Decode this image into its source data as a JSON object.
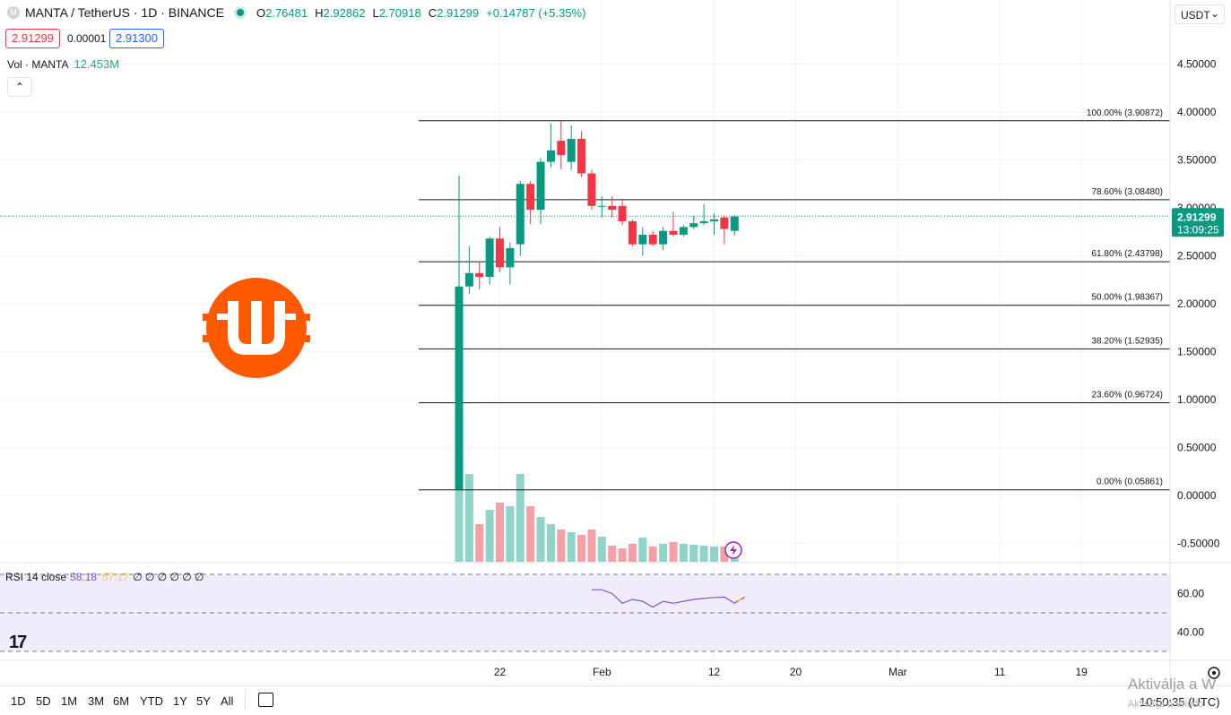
{
  "header": {
    "symbol_title": "MANTA / TetherUS · 1D · BINANCE",
    "symbol_icon": "M",
    "ohlc": {
      "o_label": "O",
      "o": "2.76481",
      "h_label": "H",
      "h": "2.92862",
      "l_label": "L",
      "l": "2.70918",
      "c_label": "C",
      "c": "2.91299",
      "change": "+0.14787 (+5.35%)"
    },
    "bid": "2.91299",
    "spread": "0.00001",
    "ask": "2.91300",
    "currency": "USDT",
    "currency_caret": "⌄"
  },
  "volume_legend": {
    "label": "Vol · MANTA",
    "value": "12.453M"
  },
  "collapse_icon": "chevron-up-icon",
  "rsi_legend": {
    "label": "RSI 14 close",
    "value": "58.18",
    "ma": "57.17",
    "zeros": "∅ ∅ ∅ ∅ ∅ ∅"
  },
  "last_price": {
    "value": "2.91299",
    "countdown": "13:09:25"
  },
  "timeframes": [
    "1D",
    "5D",
    "1M",
    "3M",
    "6M",
    "YTD",
    "1Y",
    "5Y",
    "All"
  ],
  "clock": "10:50:35 (UTC)",
  "watermark": {
    "line1": "Aktiválja a W",
    "line2": "Aktiválja a Windo"
  },
  "colors": {
    "up": "#089981",
    "down": "#f23645",
    "vol_up": "#8fd3c9",
    "vol_down": "#f5a0a6",
    "rsi": "#7e57c2",
    "rsi_ma": "#f7c948",
    "logo": "#ff5a00"
  },
  "chart_data": {
    "type": "candlestick",
    "y_axis_labels": [
      "4.50000",
      "4.00000",
      "3.50000",
      "3.00000",
      "2.50000",
      "2.00000",
      "1.50000",
      "1.00000",
      "0.50000",
      "0.00000",
      "-0.50000"
    ],
    "x_axis_labels": [
      "22",
      "Feb",
      "12",
      "20",
      "Mar",
      "11",
      "19"
    ],
    "ylim": [
      -0.7,
      5.0
    ],
    "fib_levels": [
      {
        "label": "100.00% (3.90872)",
        "value": 3.90872
      },
      {
        "label": "78.60% (3.08480)",
        "value": 3.0848
      },
      {
        "label": "61.80% (2.43798)",
        "value": 2.43798
      },
      {
        "label": "50.00% (1.98367)",
        "value": 1.98367
      },
      {
        "label": "38.20% (1.52935)",
        "value": 1.52935
      },
      {
        "label": "23.60% (0.96724)",
        "value": 0.96724
      },
      {
        "label": "0.00% (0.05861)",
        "value": 0.05861
      }
    ],
    "candles": [
      {
        "date": "2024-01-18",
        "o": 0.06,
        "h": 3.34,
        "l": 0.06,
        "c": 2.18
      },
      {
        "date": "2024-01-19",
        "o": 2.18,
        "h": 2.6,
        "l": 2.1,
        "c": 2.32
      },
      {
        "date": "2024-01-20",
        "o": 2.32,
        "h": 2.44,
        "l": 2.15,
        "c": 2.28
      },
      {
        "date": "2024-01-21",
        "o": 2.28,
        "h": 2.7,
        "l": 2.2,
        "c": 2.68
      },
      {
        "date": "2024-01-22",
        "o": 2.68,
        "h": 2.8,
        "l": 2.33,
        "c": 2.38
      },
      {
        "date": "2024-01-23",
        "o": 2.38,
        "h": 2.64,
        "l": 2.2,
        "c": 2.58
      },
      {
        "date": "2024-01-24",
        "o": 2.62,
        "h": 3.28,
        "l": 2.5,
        "c": 3.25
      },
      {
        "date": "2024-01-25",
        "o": 3.25,
        "h": 3.28,
        "l": 2.83,
        "c": 2.98
      },
      {
        "date": "2024-01-26",
        "o": 2.98,
        "h": 3.52,
        "l": 2.83,
        "c": 3.48
      },
      {
        "date": "2024-01-27",
        "o": 3.48,
        "h": 3.88,
        "l": 3.42,
        "c": 3.6
      },
      {
        "date": "2024-01-28",
        "o": 3.7,
        "h": 3.91,
        "l": 3.4,
        "c": 3.55
      },
      {
        "date": "2024-01-29",
        "o": 3.48,
        "h": 3.86,
        "l": 3.4,
        "c": 3.72
      },
      {
        "date": "2024-01-30",
        "o": 3.72,
        "h": 3.8,
        "l": 3.32,
        "c": 3.36
      },
      {
        "date": "2024-01-31",
        "o": 3.36,
        "h": 3.4,
        "l": 2.98,
        "c": 3.02
      },
      {
        "date": "2024-02-01",
        "o": 3.02,
        "h": 3.12,
        "l": 2.9,
        "c": 3.02
      },
      {
        "date": "2024-02-02",
        "o": 3.02,
        "h": 3.12,
        "l": 2.9,
        "c": 2.98
      },
      {
        "date": "2024-02-03",
        "o": 3.02,
        "h": 3.08,
        "l": 2.82,
        "c": 2.86
      },
      {
        "date": "2024-02-04",
        "o": 2.86,
        "h": 2.88,
        "l": 2.6,
        "c": 2.62
      },
      {
        "date": "2024-02-05",
        "o": 2.62,
        "h": 2.8,
        "l": 2.5,
        "c": 2.72
      },
      {
        "date": "2024-02-06",
        "o": 2.72,
        "h": 2.76,
        "l": 2.6,
        "c": 2.62
      },
      {
        "date": "2024-02-07",
        "o": 2.62,
        "h": 2.8,
        "l": 2.56,
        "c": 2.76
      },
      {
        "date": "2024-02-08",
        "o": 2.76,
        "h": 2.96,
        "l": 2.7,
        "c": 2.72
      },
      {
        "date": "2024-02-09",
        "o": 2.72,
        "h": 2.82,
        "l": 2.7,
        "c": 2.8
      },
      {
        "date": "2024-02-10",
        "o": 2.8,
        "h": 2.92,
        "l": 2.78,
        "c": 2.84
      },
      {
        "date": "2024-02-11",
        "o": 2.84,
        "h": 3.04,
        "l": 2.82,
        "c": 2.86
      },
      {
        "date": "2024-02-12",
        "o": 2.86,
        "h": 2.94,
        "l": 2.72,
        "c": 2.88
      },
      {
        "date": "2024-02-13",
        "o": 2.9,
        "h": 2.92,
        "l": 2.62,
        "c": 2.78
      },
      {
        "date": "2024-02-14",
        "o": 2.76,
        "h": 2.93,
        "l": 2.71,
        "c": 2.91
      }
    ],
    "volume_relative": [
      1.0,
      0.98,
      0.42,
      0.58,
      0.66,
      0.62,
      0.98,
      0.62,
      0.5,
      0.42,
      0.36,
      0.33,
      0.3,
      0.36,
      0.28,
      0.18,
      0.15,
      0.2,
      0.27,
      0.17,
      0.2,
      0.22,
      0.2,
      0.19,
      0.18,
      0.17,
      0.17,
      0.16
    ],
    "rsi": {
      "series_name": "RSI 14 close",
      "ylim": [
        30,
        72
      ],
      "y_axis_labels": [
        "60.00",
        "40.00"
      ],
      "bands": [
        70,
        50,
        30
      ],
      "values": [
        62,
        62,
        60,
        55,
        57,
        56,
        53,
        56,
        55,
        56,
        57,
        57.5,
        58,
        58.2,
        55,
        58.18
      ]
    },
    "last_price": 2.91299
  }
}
